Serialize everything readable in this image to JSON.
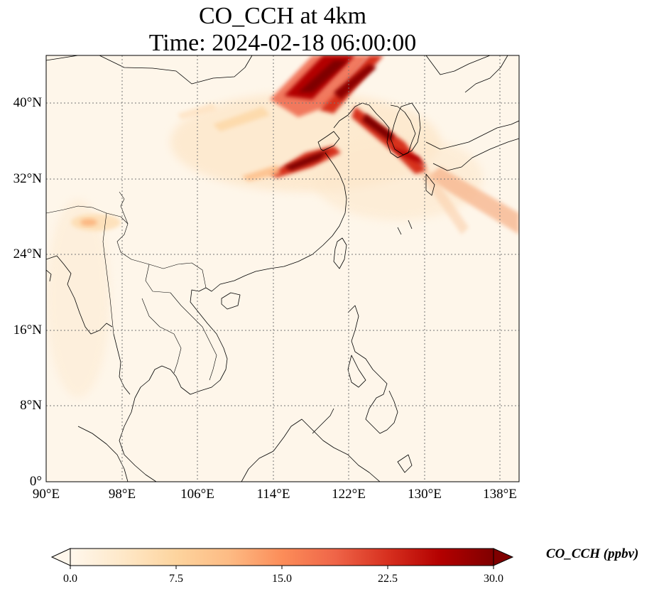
{
  "title": {
    "line1": "CO_CCH at 4km",
    "line2": "Time: 2024-02-18 06:00:00"
  },
  "map": {
    "variable": "CO_CCH",
    "level": "4km",
    "time": "2024-02-18 06:00:00",
    "extent": {
      "lon": [
        90,
        140
      ],
      "lat": [
        0,
        45
      ]
    },
    "gridlines": true,
    "lat_ticks": [
      "0°",
      "8°N",
      "16°N",
      "24°N",
      "32°N",
      "40°N"
    ],
    "lon_ticks": [
      "90°E",
      "98°E",
      "106°E",
      "114°E",
      "122°E",
      "130°E",
      "138°E"
    ]
  },
  "colorbar": {
    "label": "CO_CCH (ppbv)",
    "ticks": [
      "0.0",
      "7.5",
      "15.0",
      "22.5",
      "30.0"
    ],
    "min": 0,
    "max": 30,
    "extend": "both",
    "colormap": "OrRd",
    "colors": [
      "#fff7ec",
      "#fee8c8",
      "#fdd49e",
      "#fdbb84",
      "#fc8d59",
      "#ef6548",
      "#d7301f",
      "#b30000",
      "#7f0000"
    ]
  }
}
